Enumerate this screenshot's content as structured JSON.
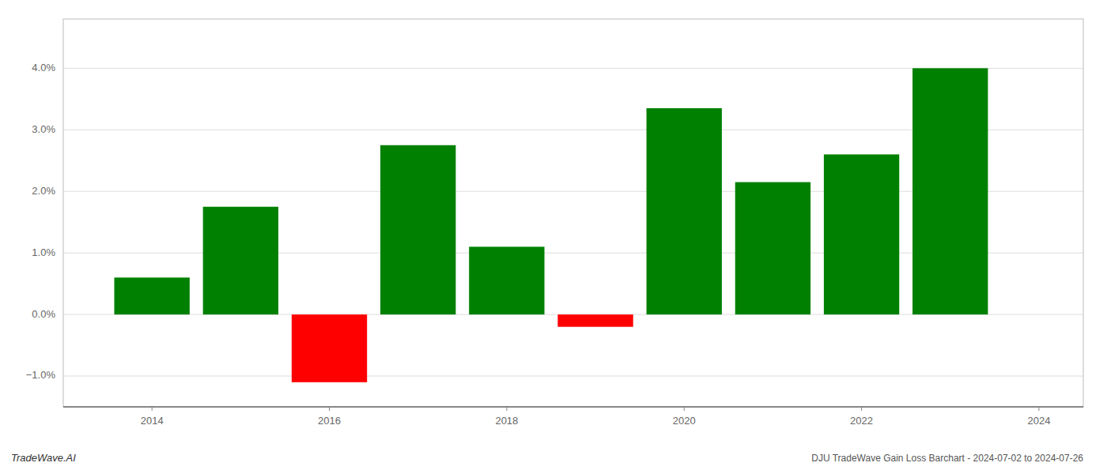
{
  "chart_data": {
    "type": "bar",
    "title": "DJU TradeWave Gain Loss Barchart - 2024-07-02 to 2024-07-26",
    "annotations": [
      "TradeWave.AI"
    ],
    "x": [
      2014,
      2015,
      2016,
      2017,
      2018,
      2019,
      2020,
      2021,
      2022,
      2023
    ],
    "values": [
      0.006,
      0.0175,
      -0.011,
      0.0275,
      0.011,
      -0.002,
      0.0335,
      0.0215,
      0.026,
      0.04
    ],
    "colors": [
      "#008000",
      "#008000",
      "#ff0000",
      "#008000",
      "#008000",
      "#ff0000",
      "#008000",
      "#008000",
      "#008000",
      "#008000"
    ],
    "xlim": [
      2013.0,
      2024.5
    ],
    "xticks": [
      2014,
      2016,
      2018,
      2020,
      2022,
      2024
    ],
    "ylim": [
      -0.015,
      0.048
    ],
    "yticks": [
      {
        "value": -0.01,
        "label": "−1.0%"
      },
      {
        "value": 0.0,
        "label": "0.0%"
      },
      {
        "value": 0.01,
        "label": "1.0%"
      },
      {
        "value": 0.02,
        "label": "2.0%"
      },
      {
        "value": 0.03,
        "label": "3.0%"
      },
      {
        "value": 0.04,
        "label": "4.0%"
      }
    ],
    "grid": true
  }
}
